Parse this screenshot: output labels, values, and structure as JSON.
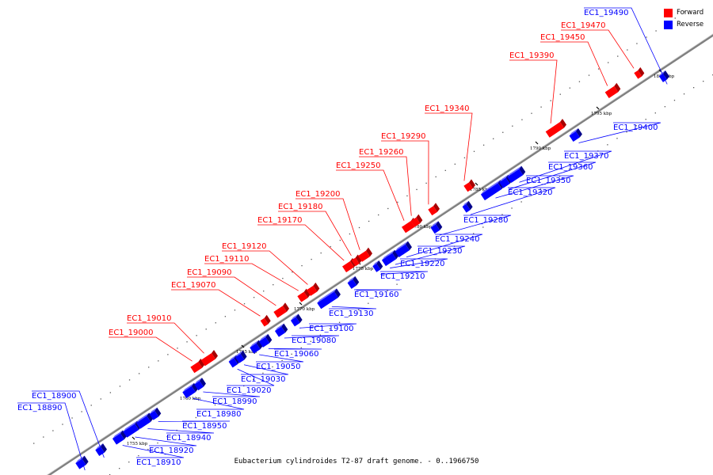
{
  "caption": "Eubacterium cylindroides T2-87 draft genome. - 0..1966750",
  "legend": {
    "forward": {
      "label": "Forward",
      "color": "#ff0000"
    },
    "reverse": {
      "label": "Reverse",
      "color": "#0000ff"
    }
  },
  "colors": {
    "forward": "#ff0000",
    "reverse": "#0000ff",
    "backbone": "#808080"
  },
  "scale_ticks": [
    "1755 kbp",
    "1760 kbp",
    "1765 kbp",
    "1770 kbp",
    "1775 kbp",
    "1780 kbp",
    "1785 kbp",
    "1790 kbp",
    "1795 kbp",
    "1800 kbp"
  ],
  "genes": [
    {
      "id": "EC1_18890",
      "strand": "reverse"
    },
    {
      "id": "EC1_18900",
      "strand": "reverse"
    },
    {
      "id": "EC1_18910",
      "strand": "reverse"
    },
    {
      "id": "EC1_18920",
      "strand": "reverse"
    },
    {
      "id": "EC1_18940",
      "strand": "reverse"
    },
    {
      "id": "EC1_18950",
      "strand": "reverse"
    },
    {
      "id": "EC1_18980",
      "strand": "reverse"
    },
    {
      "id": "EC1_18990",
      "strand": "reverse"
    },
    {
      "id": "EC1_19000",
      "strand": "forward"
    },
    {
      "id": "EC1_19010",
      "strand": "forward"
    },
    {
      "id": "EC1_19020",
      "strand": "reverse"
    },
    {
      "id": "EC1_19030",
      "strand": "reverse"
    },
    {
      "id": "EC1_19050",
      "strand": "reverse"
    },
    {
      "id": "EC1_19060",
      "strand": "reverse"
    },
    {
      "id": "EC1_19070",
      "strand": "forward"
    },
    {
      "id": "EC1_19080",
      "strand": "reverse"
    },
    {
      "id": "EC1_19090",
      "strand": "forward"
    },
    {
      "id": "EC1_19100",
      "strand": "reverse"
    },
    {
      "id": "EC1_19110",
      "strand": "forward"
    },
    {
      "id": "EC1_19120",
      "strand": "forward"
    },
    {
      "id": "EC1_19130",
      "strand": "reverse"
    },
    {
      "id": "EC1_19160",
      "strand": "reverse"
    },
    {
      "id": "EC1_19170",
      "strand": "forward"
    },
    {
      "id": "EC1_19180",
      "strand": "forward"
    },
    {
      "id": "EC1_19200",
      "strand": "forward"
    },
    {
      "id": "EC1_19210",
      "strand": "reverse"
    },
    {
      "id": "EC1_19220",
      "strand": "reverse"
    },
    {
      "id": "EC1_19230",
      "strand": "reverse"
    },
    {
      "id": "EC1_19240",
      "strand": "reverse"
    },
    {
      "id": "EC1_19250",
      "strand": "forward"
    },
    {
      "id": "EC1_19260",
      "strand": "forward"
    },
    {
      "id": "EC1_19280",
      "strand": "reverse"
    },
    {
      "id": "EC1_19290",
      "strand": "forward"
    },
    {
      "id": "EC1_19320",
      "strand": "reverse"
    },
    {
      "id": "EC1_19340",
      "strand": "forward"
    },
    {
      "id": "EC1_19350",
      "strand": "reverse"
    },
    {
      "id": "EC1_19360",
      "strand": "reverse"
    },
    {
      "id": "EC1_19370",
      "strand": "reverse"
    },
    {
      "id": "EC1_19390",
      "strand": "forward"
    },
    {
      "id": "EC1_19400",
      "strand": "reverse"
    },
    {
      "id": "EC1_19450",
      "strand": "forward"
    },
    {
      "id": "EC1_19470",
      "strand": "forward"
    },
    {
      "id": "EC1_19490",
      "strand": "reverse"
    }
  ]
}
